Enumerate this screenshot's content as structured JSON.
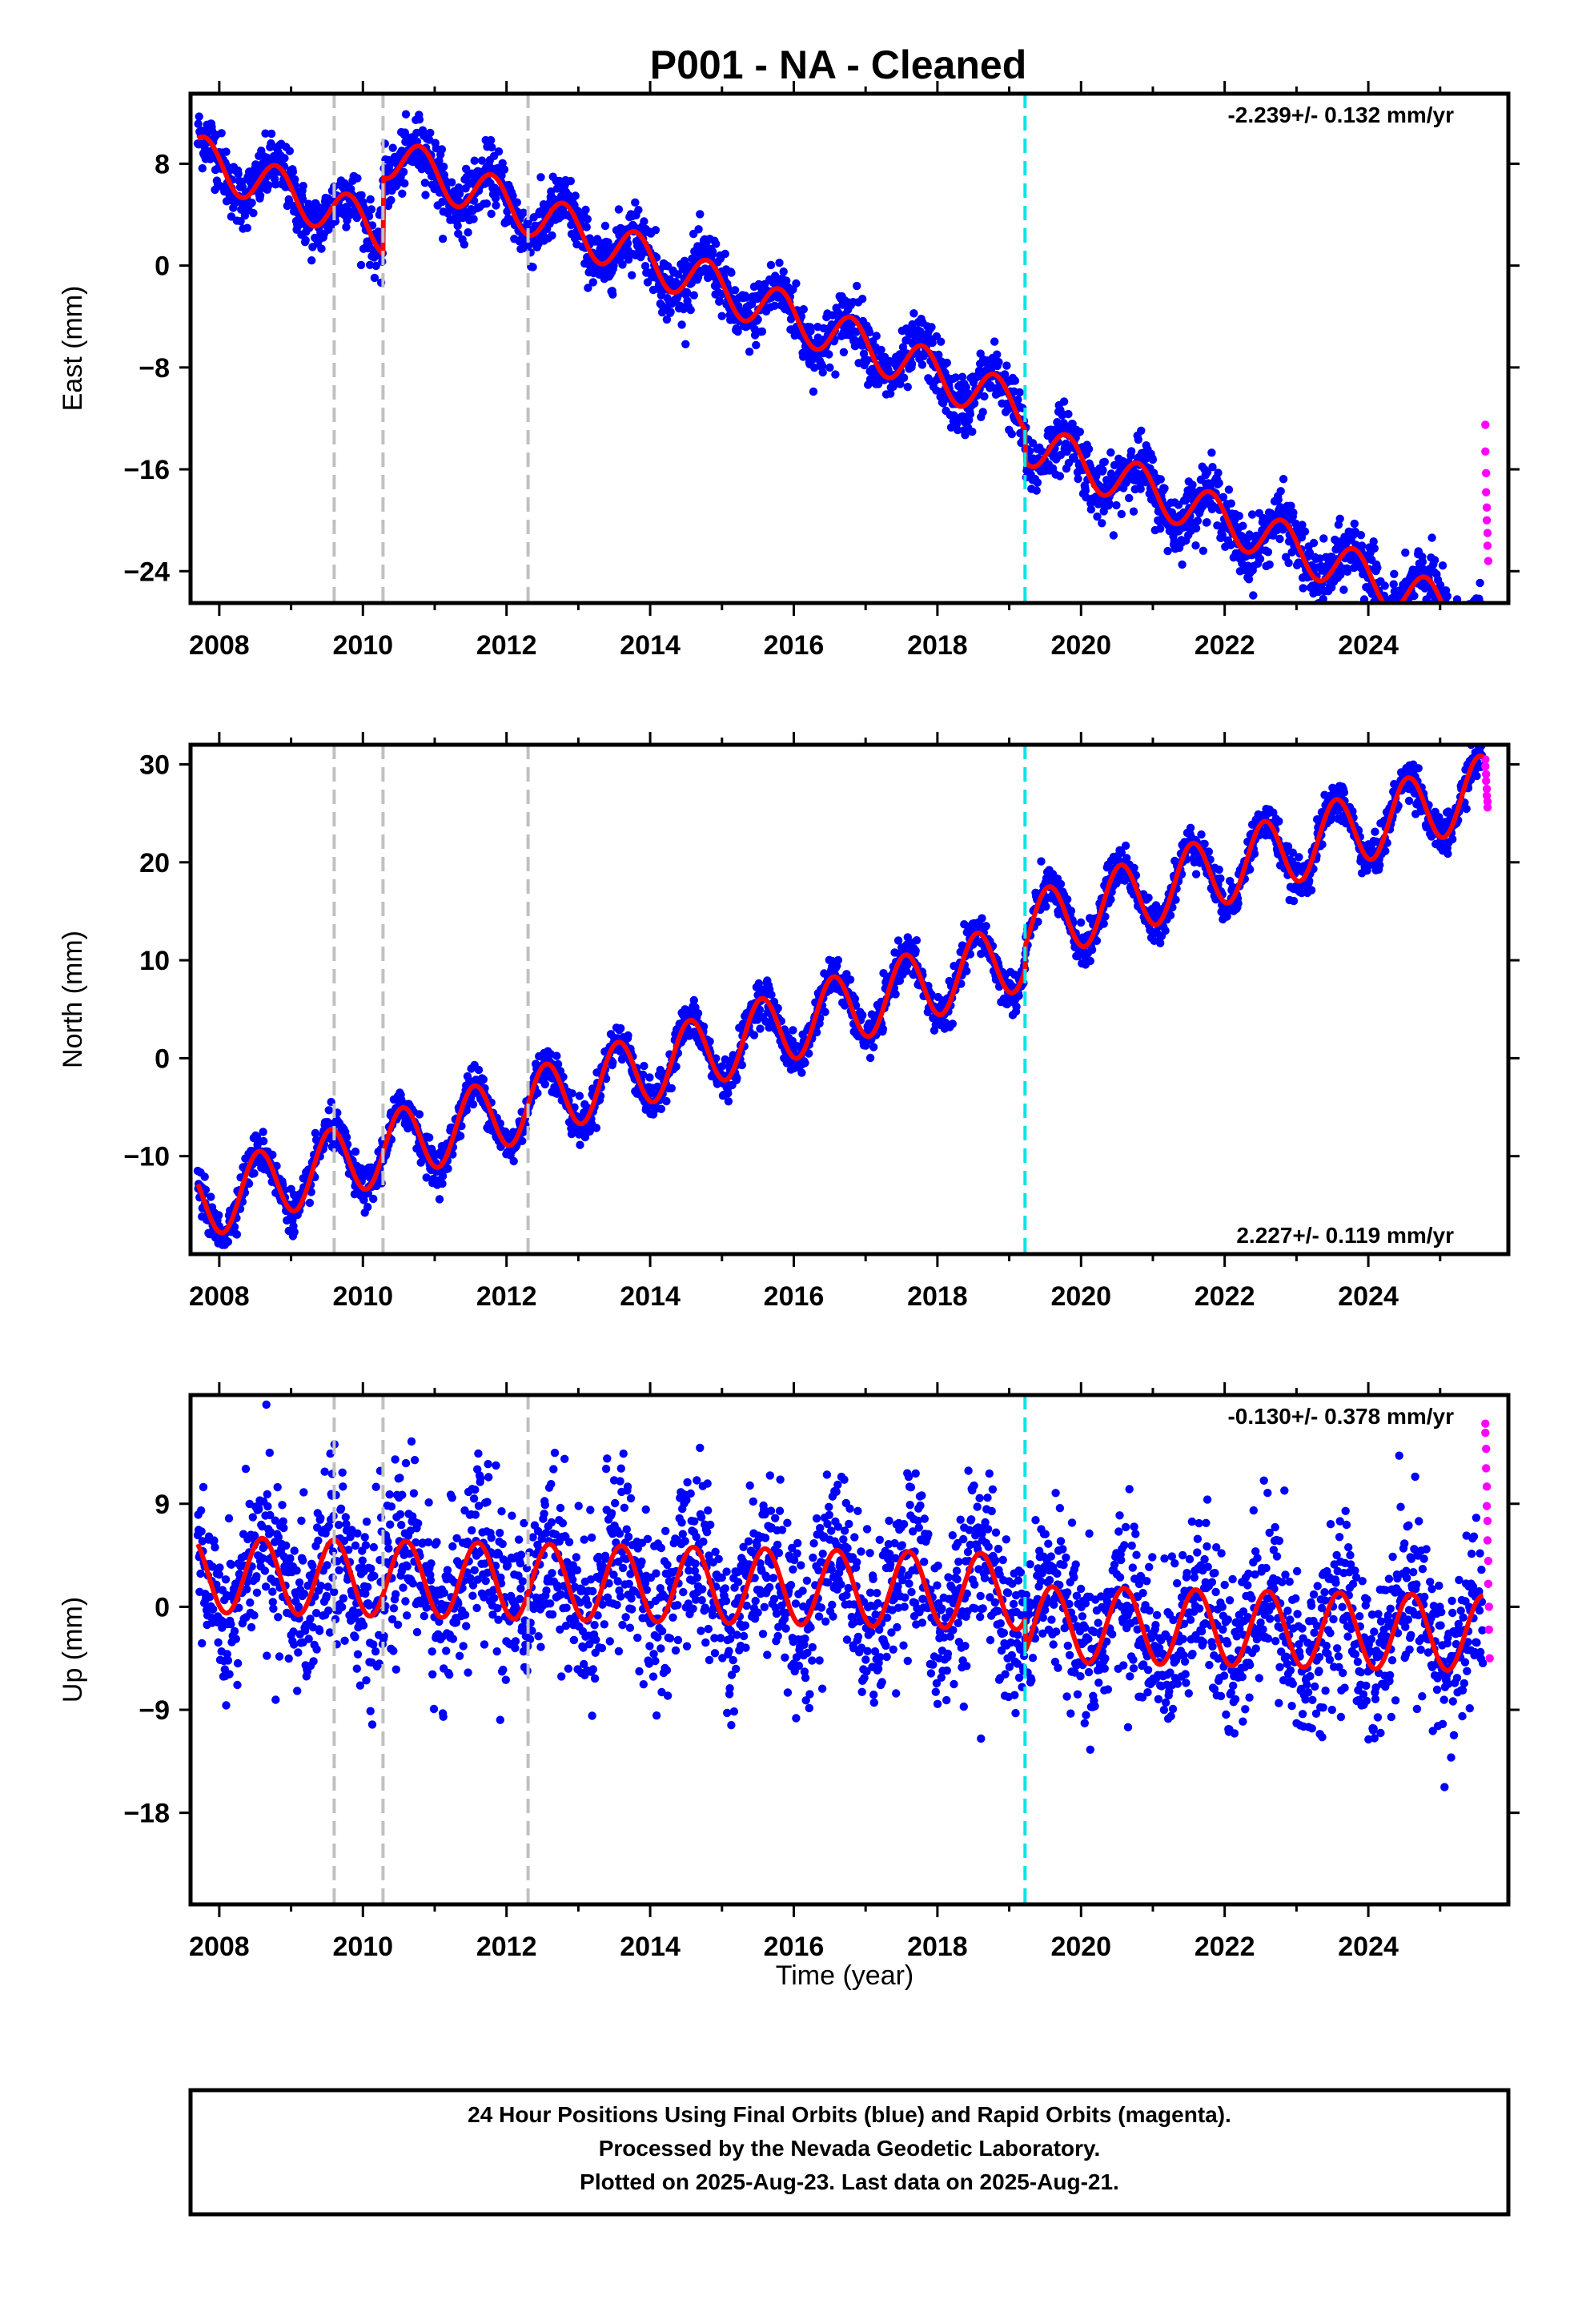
{
  "title": "P001  - NA - Cleaned",
  "footer": {
    "line1": "24 Hour Positions Using Final Orbits (blue) and Rapid Orbits (magenta).",
    "line2": "Processed by the Nevada Geodetic Laboratory.",
    "line3": "Plotted on 2025-Aug-23. Last data on 2025-Aug-21."
  },
  "colors": {
    "final": "#0000ff",
    "rapid": "#ff00ff",
    "model": "#ff0000",
    "equipment_change": "#c0c0c0",
    "earthquake": "#00e5e5"
  },
  "xlabel": "Time (year)",
  "chart_data": [
    {
      "type": "scatter",
      "ylabel": "East (mm)",
      "rate_label": "-2.239+/- 0.132 mm/yr",
      "rate_position": "top-right",
      "xlim": [
        2007.6,
        2025.95
      ],
      "ylim": [
        -26.5,
        13.5
      ],
      "yticks": [
        8,
        0,
        -8,
        -16,
        -24
      ],
      "ytick_labels": [
        "8",
        "0",
        "−8",
        "−16",
        "−24"
      ],
      "xticks": [
        2008,
        2010,
        2012,
        2014,
        2016,
        2018,
        2020,
        2022,
        2024
      ],
      "vlines_gray": [
        2009.6,
        2010.28,
        2012.3
      ],
      "vline_cyan": 2019.22,
      "model": {
        "start": 2007.7,
        "end": 2025.6,
        "start_value": 8.5,
        "trend": -2.239,
        "amplitude": 1.8,
        "phase_peak": 0.8,
        "offsets": [
          {
            "t": 2010.28,
            "d": 6.0
          },
          {
            "t": 2019.22,
            "d": -2.5
          }
        ]
      },
      "scatter_sd": 1.2,
      "rapid_points": [
        [
          2025.63,
          -12.5
        ],
        [
          2025.63,
          -14.6
        ],
        [
          2025.64,
          -16.3
        ],
        [
          2025.64,
          -17.8
        ],
        [
          2025.65,
          -19.0
        ],
        [
          2025.65,
          -20.0
        ],
        [
          2025.66,
          -21.0
        ],
        [
          2025.66,
          -22.0
        ],
        [
          2025.67,
          -23.2
        ]
      ]
    },
    {
      "type": "scatter",
      "ylabel": "North (mm)",
      "rate_label": "2.227+/- 0.119 mm/yr",
      "rate_position": "bottom-right",
      "xlim": [
        2007.6,
        2025.95
      ],
      "ylim": [
        -20,
        32
      ],
      "yticks": [
        30,
        20,
        10,
        0,
        -10
      ],
      "ytick_labels": [
        "30",
        "20",
        "10",
        "0",
        "−10"
      ],
      "xticks": [
        2008,
        2010,
        2012,
        2014,
        2016,
        2018,
        2020,
        2022,
        2024
      ],
      "vlines_gray": [
        2009.6,
        2010.28,
        2012.3
      ],
      "vline_cyan": 2019.22,
      "model": {
        "start": 2007.7,
        "end": 2025.6,
        "start_value": -15.0,
        "trend": 2.227,
        "amplitude": 3.6,
        "phase_peak": 0.55,
        "offsets": [
          {
            "t": 2019.22,
            "d": 2.5
          }
        ]
      },
      "scatter_sd": 1.0,
      "rapid_points": [
        [
          2025.63,
          30.5
        ],
        [
          2025.63,
          29.8
        ],
        [
          2025.64,
          29.0
        ],
        [
          2025.64,
          28.3
        ],
        [
          2025.65,
          27.5
        ],
        [
          2025.65,
          26.8
        ],
        [
          2025.66,
          26.2
        ],
        [
          2025.66,
          25.6
        ]
      ]
    },
    {
      "type": "scatter",
      "ylabel": "Up (mm)",
      "rate_label": "-0.130+/- 0.378 mm/yr",
      "rate_position": "top-right",
      "xlim": [
        2007.6,
        2025.95
      ],
      "ylim": [
        -26,
        18.5
      ],
      "yticks": [
        9,
        0,
        -9,
        -18
      ],
      "ytick_labels": [
        "9",
        "0",
        "−9",
        "−18"
      ],
      "xticks": [
        2008,
        2010,
        2012,
        2014,
        2016,
        2018,
        2020,
        2022,
        2024
      ],
      "vlines_gray": [
        2009.6,
        2010.28,
        2012.3
      ],
      "vline_cyan": 2019.22,
      "model": {
        "start": 2007.7,
        "end": 2025.6,
        "start_value": 2.8,
        "trend": -0.13,
        "amplitude": 3.3,
        "phase_peak": 0.6,
        "offsets": [
          {
            "t": 2019.22,
            "d": -2.8
          }
        ]
      },
      "scatter_sd": 3.6,
      "rapid_points": [
        [
          2025.63,
          16.0
        ],
        [
          2025.63,
          15.2
        ],
        [
          2025.64,
          13.8
        ],
        [
          2025.64,
          12.1
        ],
        [
          2025.65,
          10.5
        ],
        [
          2025.65,
          8.8
        ],
        [
          2025.66,
          7.5
        ],
        [
          2025.66,
          5.8
        ],
        [
          2025.67,
          4.0
        ],
        [
          2025.67,
          2.0
        ],
        [
          2025.68,
          0.0
        ],
        [
          2025.68,
          -2.0
        ],
        [
          2025.69,
          -4.5
        ]
      ]
    }
  ]
}
